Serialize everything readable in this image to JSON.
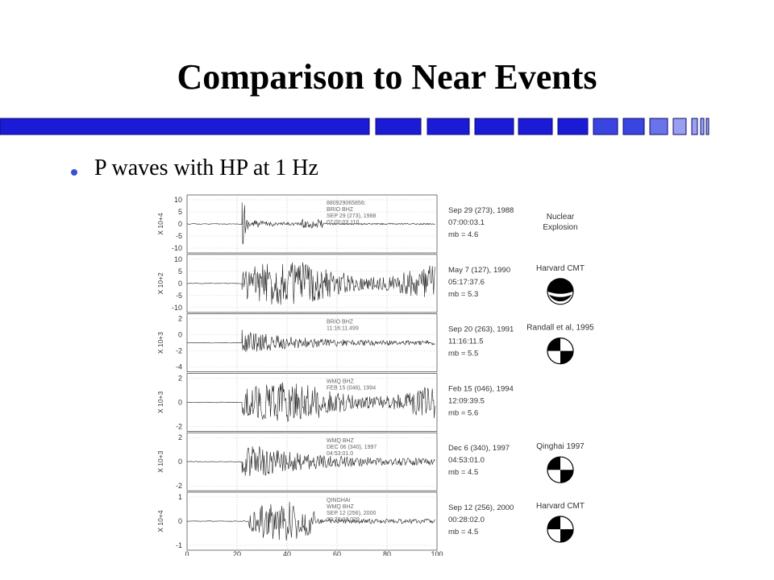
{
  "slide": {
    "title": "Comparison to Near Events",
    "bullet": "P waves with HP at 1 Hz"
  },
  "colors": {
    "bar_dark": "#1b1bd6",
    "bar_mid": "#3a44e0",
    "bar_light": "#6b73ea",
    "bar_lighter": "#9aa0f0",
    "bullet": "#3a4fd8"
  },
  "chart_data": {
    "type": "line",
    "description_free": true,
    "x": {
      "ticks": [
        "0",
        "20",
        "40",
        "60",
        "80",
        "100"
      ],
      "lim": [
        0,
        100
      ]
    },
    "panels": [
      {
        "scale_label": "X 10+4",
        "yticks": [
          "10",
          "5",
          "0",
          "-5",
          "-10"
        ],
        "station_lines": [
          "880929065856:",
          "BRIO  BHZ",
          "SEP 29 (273), 1988",
          "07:00:03.110"
        ],
        "event_lines": [
          "Sep 29 (273), 1988",
          "07:00:03.1",
          "mb = 4.6"
        ],
        "mechanism_label": "Nuclear\nExplosion",
        "mechanism_label_lines": [
          "Nuclear",
          "Explosion"
        ],
        "beachball": null,
        "onset": 22,
        "amp": 0.9,
        "style": "explosion"
      },
      {
        "scale_label": "X 10+2",
        "yticks": [
          "10",
          "5",
          "0",
          "-5",
          "-10"
        ],
        "station_lines": [],
        "event_lines": [
          "May 7 (127), 1990",
          "05:17:37.6",
          "mb = 5.3"
        ],
        "mechanism_label_lines": [
          "Harvard CMT"
        ],
        "beachball": "thrust",
        "onset": 22,
        "amp": 0.85,
        "style": "noisy"
      },
      {
        "scale_label": "X 10+3",
        "yticks": [
          "2",
          "0",
          "-2",
          "-4"
        ],
        "station_lines": [
          "BRIO  BHZ",
          "11:16:11.499"
        ],
        "event_lines": [
          "Sep 20 (263), 1991",
          "11:16:11.5",
          "mb = 5.5"
        ],
        "mechanism_label_lines": [
          "Randall et al, 1995"
        ],
        "beachball": "strike",
        "onset": 22,
        "amp": 0.5,
        "style": "decay"
      },
      {
        "scale_label": "X 10+3",
        "yticks": [
          "2",
          "0",
          "-2"
        ],
        "station_lines": [
          "WMQ  BHZ",
          "FEB 15 (046), 1994"
        ],
        "event_lines": [
          "Feb 15 (046), 1994",
          "12:09:39.5",
          "mb = 5.6"
        ],
        "mechanism_label_lines": [],
        "beachball": null,
        "onset": 22,
        "amp": 0.75,
        "style": "noisy"
      },
      {
        "scale_label": "X 10+3",
        "yticks": [
          "2",
          "0",
          "-2"
        ],
        "station_lines": [
          "WMQ  BHZ",
          "DEC 06 (340), 1997",
          "04:53:01.0"
        ],
        "event_lines": [
          "Dec 6 (340), 1997",
          "04:53:01.0",
          "mb = 4.5"
        ],
        "mechanism_label_lines": [
          "Qinghai 1997"
        ],
        "beachball": "strike",
        "onset": 22,
        "amp": 0.8,
        "style": "decay"
      },
      {
        "scale_label": "X 10+4",
        "yticks": [
          "1",
          "0",
          "-1"
        ],
        "station_lines": [
          "QINGHAI",
          "WMQ  BHZ",
          "SEP 12 (256), 2000",
          "00:28:02.029"
        ],
        "event_lines": [
          "Sep 12 (256), 2000",
          "00:28:02.0",
          "mb = 4.5"
        ],
        "mechanism_label_lines": [
          "Harvard CMT"
        ],
        "beachball": "strike",
        "onset": 25,
        "amp": 0.75,
        "style": "burst"
      }
    ]
  }
}
